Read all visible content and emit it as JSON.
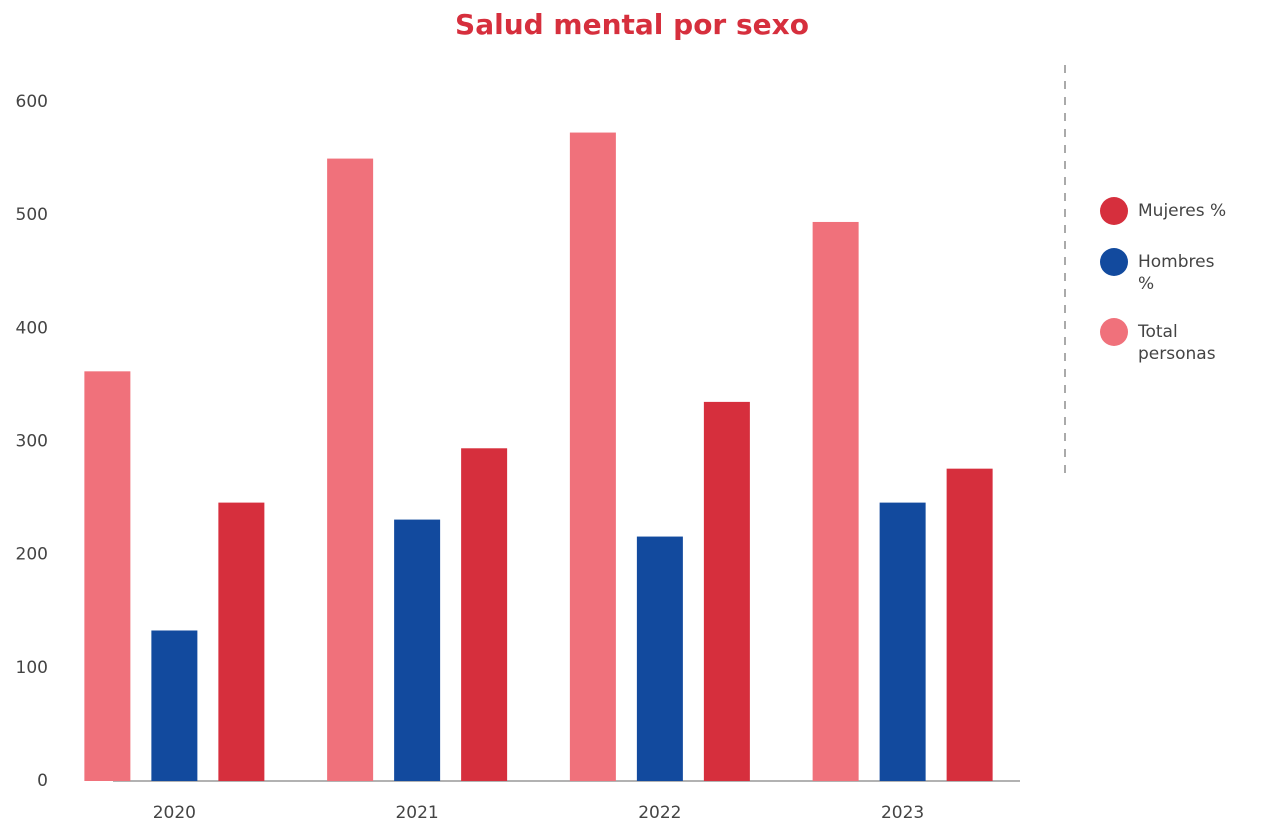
{
  "chart_data": {
    "type": "bar",
    "title": "Salud mental por sexo",
    "categories": [
      "2020",
      "2021",
      "2022",
      "2023"
    ],
    "series": [
      {
        "name": "Mujeres %",
        "color": "#d62f3d",
        "values": [
          246,
          294,
          335,
          276
        ]
      },
      {
        "name": "Hombres %",
        "color": "#124a9e",
        "values": [
          133,
          231,
          216,
          246
        ]
      },
      {
        "name": "Total personas",
        "color": "#f0717b",
        "values": [
          362,
          550,
          573,
          494
        ]
      }
    ],
    "ylim": [
      0,
      600
    ],
    "yticks": [
      0,
      100,
      200,
      300,
      400,
      500,
      600
    ],
    "grid": false,
    "legend": "right"
  }
}
